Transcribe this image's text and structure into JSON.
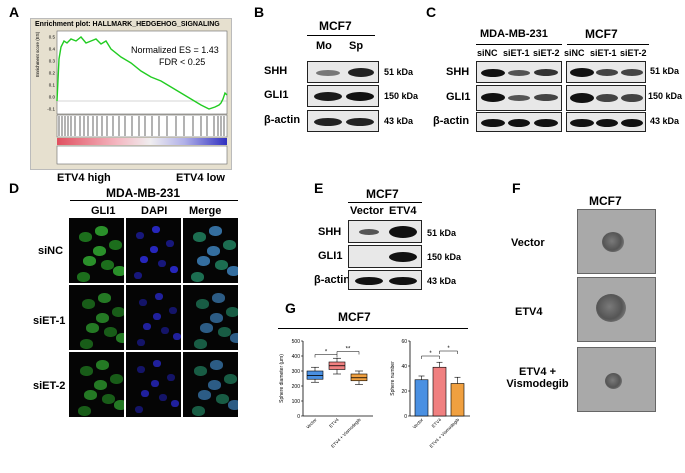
{
  "panels": {
    "A": "A",
    "B": "B",
    "C": "C",
    "D": "D",
    "E": "E",
    "F": "F",
    "G": "G"
  },
  "gsea": {
    "title": "Enrichment plot: HALLMARK_HEDGEHOG_SIGNALING",
    "ylabel": "Enrichment score (ES)",
    "nes": "Normalized ES = 1.43",
    "fdr": "FDR < 0.25",
    "yticks": [
      "0.5",
      "0.4",
      "0.3",
      "0.2",
      "0.1",
      "0.0",
      "-0.1"
    ],
    "high_label": "ETV4 high",
    "low_label": "ETV4 low",
    "colors": {
      "line": "#22cc22",
      "high": "#e05060",
      "low": "#3030c0"
    }
  },
  "panel_b": {
    "cell_line": "MCF7",
    "lanes": [
      "Mo",
      "Sp"
    ],
    "rows": [
      {
        "protein": "SHH",
        "kda": "51 kDa"
      },
      {
        "protein": "GLI1",
        "kda": "150 kDa"
      },
      {
        "protein": "β-actin",
        "kda": "43 kDa"
      }
    ]
  },
  "panel_c": {
    "groups": [
      {
        "cell_line": "MDA-MB-231",
        "lanes": [
          "siNC",
          "siET-1",
          "siET-2"
        ]
      },
      {
        "cell_line": "MCF7",
        "lanes": [
          "siNC",
          "siET-1",
          "siET-2"
        ]
      }
    ],
    "rows": [
      {
        "protein": "SHH",
        "kda": "51 kDa"
      },
      {
        "protein": "GLI1",
        "kda": "150 kDa"
      },
      {
        "protein": "β-actin",
        "kda": "43 kDa"
      }
    ]
  },
  "panel_d": {
    "cell_line": "MDA-MB-231",
    "columns": [
      "GLI1",
      "DAPI",
      "Merge"
    ],
    "rows": [
      "siNC",
      "siET-1",
      "siET-2"
    ]
  },
  "panel_e": {
    "cell_line": "MCF7",
    "lanes": [
      "Vector",
      "ETV4"
    ],
    "rows": [
      {
        "protein": "SHH",
        "kda": "51 kDa"
      },
      {
        "protein": "GLI1",
        "kda": "150 kDa"
      },
      {
        "protein": "β-actin",
        "kda": "43 kDa"
      }
    ]
  },
  "panel_f": {
    "cell_line": "MCF7",
    "rows": [
      "Vector",
      "ETV4",
      "ETV4 + Vismodegib"
    ]
  },
  "panel_g": {
    "cell_line": "MCF7",
    "colors": {
      "Vector": "#4a90e2",
      "ETV4": "#f08080",
      "ETV4 + Vismodegib": "#f0a040"
    }
  },
  "chart_data": [
    {
      "type": "box",
      "ylabel": "Sphere diameter (μm)",
      "ylim": [
        0,
        500
      ],
      "yticks": [
        "0",
        "100",
        "200",
        "300",
        "400",
        "500"
      ],
      "categories": [
        "Vector",
        "ETV4",
        "ETV4 + Vismodegib"
      ],
      "boxes": [
        {
          "name": "Vector",
          "min": 225,
          "q1": 245,
          "median": 270,
          "q3": 300,
          "max": 325
        },
        {
          "name": "ETV4",
          "min": 280,
          "q1": 310,
          "median": 335,
          "q3": 360,
          "max": 385
        },
        {
          "name": "ETV4 + Vismodegib",
          "min": 210,
          "q1": 235,
          "median": 255,
          "q3": 280,
          "max": 300
        }
      ],
      "significance": [
        "*",
        "**"
      ]
    },
    {
      "type": "bar",
      "ylabel": "Sphere number",
      "ylim": [
        0,
        60
      ],
      "yticks": [
        "0",
        "20",
        "40",
        "60"
      ],
      "categories": [
        "Vector",
        "ETV4",
        "ETV4 + Vismodegib"
      ],
      "values": [
        29,
        39,
        26
      ],
      "errors": [
        3,
        4,
        5
      ],
      "significance": [
        "*",
        "*"
      ]
    }
  ]
}
